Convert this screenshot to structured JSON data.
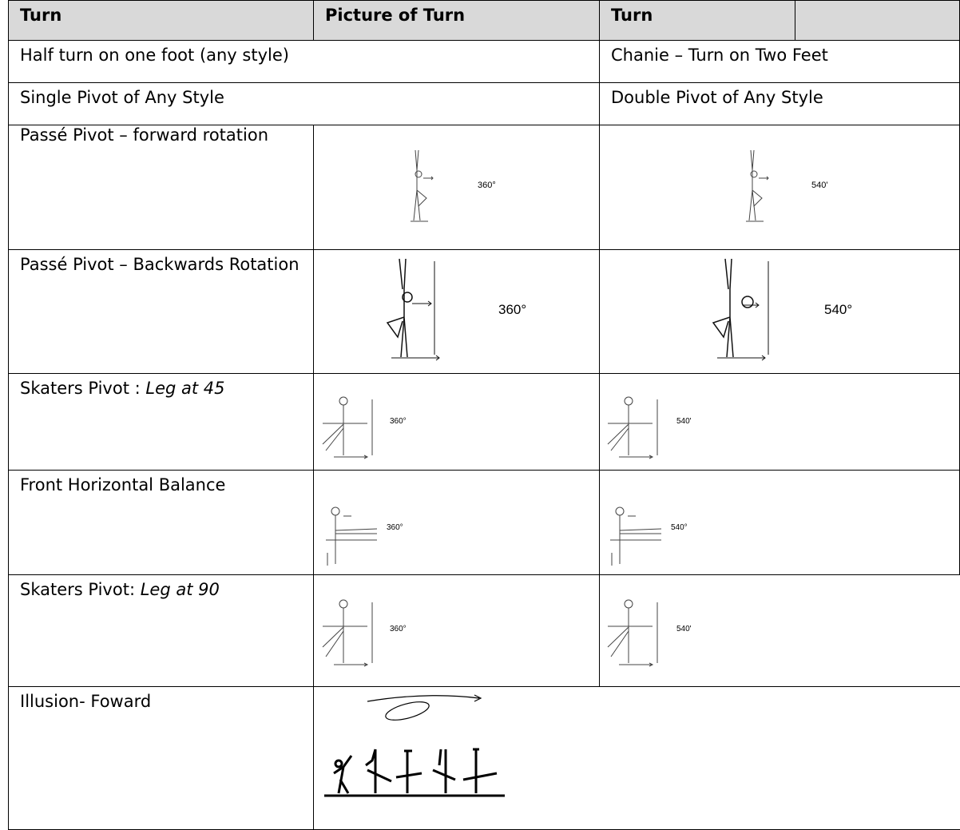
{
  "table": {
    "header": [
      "Turn",
      "Picture of Turn",
      "Turn"
    ],
    "rows": [
      {
        "turn": "Half turn on one foot (any style)",
        "alt_turn": "Chanie – Turn on Two Feet"
      },
      {
        "turn": "Single Pivot of Any Style",
        "alt_turn": "Double Pivot of Any Style"
      },
      {
        "turn": "Passé Pivot – forward rotation",
        "figure_label": "360°",
        "alt_figure_label": "540'"
      },
      {
        "turn": "Passé Pivot – Backwards Rotation",
        "figure_label": "360°",
        "alt_figure_label": "540°"
      },
      {
        "turn": "Skaters Pivot :",
        "turn_note": "Leg at 45",
        "figure_label": "360°",
        "alt_figure_label": "540'"
      },
      {
        "turn": "Front Horizontal Balance",
        "figure_label": "360°",
        "alt_figure_label": "540°"
      },
      {
        "turn": "Skaters Pivot:",
        "turn_note": "Leg at 90",
        "figure_label": "360°",
        "alt_figure_label": "540'"
      },
      {
        "turn": "Illusion- Foward"
      }
    ]
  }
}
